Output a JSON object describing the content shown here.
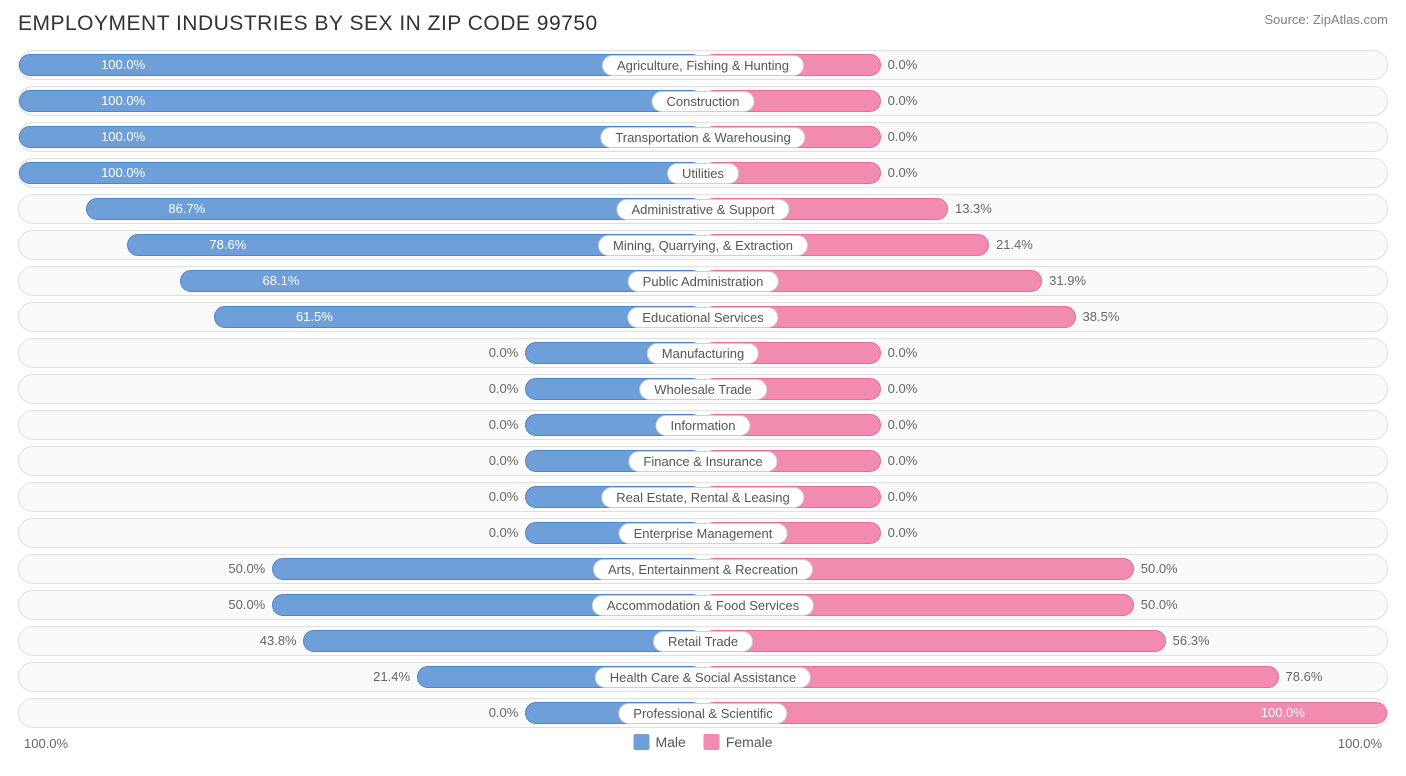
{
  "header": {
    "title": "EMPLOYMENT INDUSTRIES BY SEX IN ZIP CODE 99750",
    "source": "Source: ZipAtlas.com"
  },
  "chart": {
    "type": "diverging-bar",
    "male_color": "#6f9fd8",
    "male_border": "#4f85c8",
    "female_color": "#f18bb0",
    "female_border": "#e86b98",
    "row_bg": "#fafafa",
    "row_border": "#e0e0e0",
    "label_bg": "#ffffff",
    "label_border": "#d0d0d0",
    "text_color": "#666666",
    "base_left_pct": 13,
    "base_right_pct": 13,
    "half_scale_pct": 37,
    "rows": [
      {
        "label": "Agriculture, Fishing & Hunting",
        "male": 100.0,
        "female": 0.0
      },
      {
        "label": "Construction",
        "male": 100.0,
        "female": 0.0
      },
      {
        "label": "Transportation & Warehousing",
        "male": 100.0,
        "female": 0.0
      },
      {
        "label": "Utilities",
        "male": 100.0,
        "female": 0.0
      },
      {
        "label": "Administrative & Support",
        "male": 86.7,
        "female": 13.3
      },
      {
        "label": "Mining, Quarrying, & Extraction",
        "male": 78.6,
        "female": 21.4
      },
      {
        "label": "Public Administration",
        "male": 68.1,
        "female": 31.9
      },
      {
        "label": "Educational Services",
        "male": 61.5,
        "female": 38.5
      },
      {
        "label": "Manufacturing",
        "male": 0.0,
        "female": 0.0
      },
      {
        "label": "Wholesale Trade",
        "male": 0.0,
        "female": 0.0
      },
      {
        "label": "Information",
        "male": 0.0,
        "female": 0.0
      },
      {
        "label": "Finance & Insurance",
        "male": 0.0,
        "female": 0.0
      },
      {
        "label": "Real Estate, Rental & Leasing",
        "male": 0.0,
        "female": 0.0
      },
      {
        "label": "Enterprise Management",
        "male": 0.0,
        "female": 0.0
      },
      {
        "label": "Arts, Entertainment & Recreation",
        "male": 50.0,
        "female": 50.0
      },
      {
        "label": "Accommodation & Food Services",
        "male": 50.0,
        "female": 50.0
      },
      {
        "label": "Retail Trade",
        "male": 43.8,
        "female": 56.3
      },
      {
        "label": "Health Care & Social Assistance",
        "male": 21.4,
        "female": 78.6
      },
      {
        "label": "Professional & Scientific",
        "male": 0.0,
        "female": 100.0
      }
    ]
  },
  "axis": {
    "left": "100.0%",
    "right": "100.0%"
  },
  "legend": {
    "male": "Male",
    "female": "Female"
  }
}
